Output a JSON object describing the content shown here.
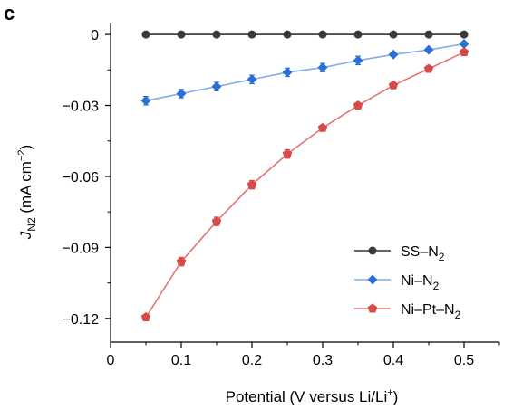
{
  "panel_label": "c",
  "chart_data": {
    "type": "line",
    "x": [
      0.05,
      0.1,
      0.15,
      0.2,
      0.25,
      0.3,
      0.35,
      0.4,
      0.45,
      0.5
    ],
    "xlabel": "Potential (V versus Li/Li⁺)",
    "ylabel_main": "J",
    "ylabel_sub": "N2",
    "ylabel_rest": " (mA cm",
    "ylabel_sup": "−2",
    "ylabel_close": ")",
    "xlim": [
      0,
      0.55
    ],
    "ylim": [
      -0.13,
      0.005
    ],
    "xticks": [
      0,
      0.1,
      0.2,
      0.3,
      0.4,
      0.5
    ],
    "xtick_labels": [
      "0",
      "0.1",
      "0.2",
      "0.3",
      "0.4",
      "0.5"
    ],
    "yticks": [
      0,
      -0.03,
      -0.06,
      -0.09,
      -0.12
    ],
    "ytick_labels": [
      "0",
      "−0.03",
      "−0.06",
      "−0.09",
      "−0.12"
    ],
    "grid": false,
    "legend_position": "bottom-right",
    "series": [
      {
        "name_main": "SS–N",
        "name_sub": "2",
        "marker": "circle",
        "color": "#333333",
        "marker_color": "#3a3a3a",
        "values": [
          0,
          0,
          0,
          0,
          0,
          0,
          0,
          0,
          0,
          0
        ],
        "errors": [
          0,
          0,
          0,
          0,
          0,
          0,
          0,
          0,
          0,
          0
        ]
      },
      {
        "name_main": "Ni–N",
        "name_sub": "2",
        "marker": "diamond",
        "color": "#7fb0e6",
        "marker_color": "#2b6fd6",
        "values": [
          -0.028,
          -0.025,
          -0.022,
          -0.019,
          -0.016,
          -0.014,
          -0.011,
          -0.0085,
          -0.0065,
          -0.004
        ],
        "errors": [
          0.0018,
          0.0018,
          0.0018,
          0.0018,
          0.0018,
          0.0018,
          0.0018,
          0.0008,
          0.0006,
          0.0006
        ]
      },
      {
        "name_main": "Ni–Pt–N",
        "name_sub": "2",
        "marker": "pentagon",
        "color": "#e37474",
        "marker_color": "#d84a4a",
        "values": [
          -0.1195,
          -0.096,
          -0.079,
          -0.0635,
          -0.0505,
          -0.0395,
          -0.03,
          -0.0215,
          -0.0145,
          -0.0075
        ],
        "errors": [
          0.0012,
          0.0018,
          0.0018,
          0.0018,
          0.0018,
          0.0012,
          0.0008,
          0.0006,
          0.0006,
          0.0006
        ]
      }
    ]
  }
}
